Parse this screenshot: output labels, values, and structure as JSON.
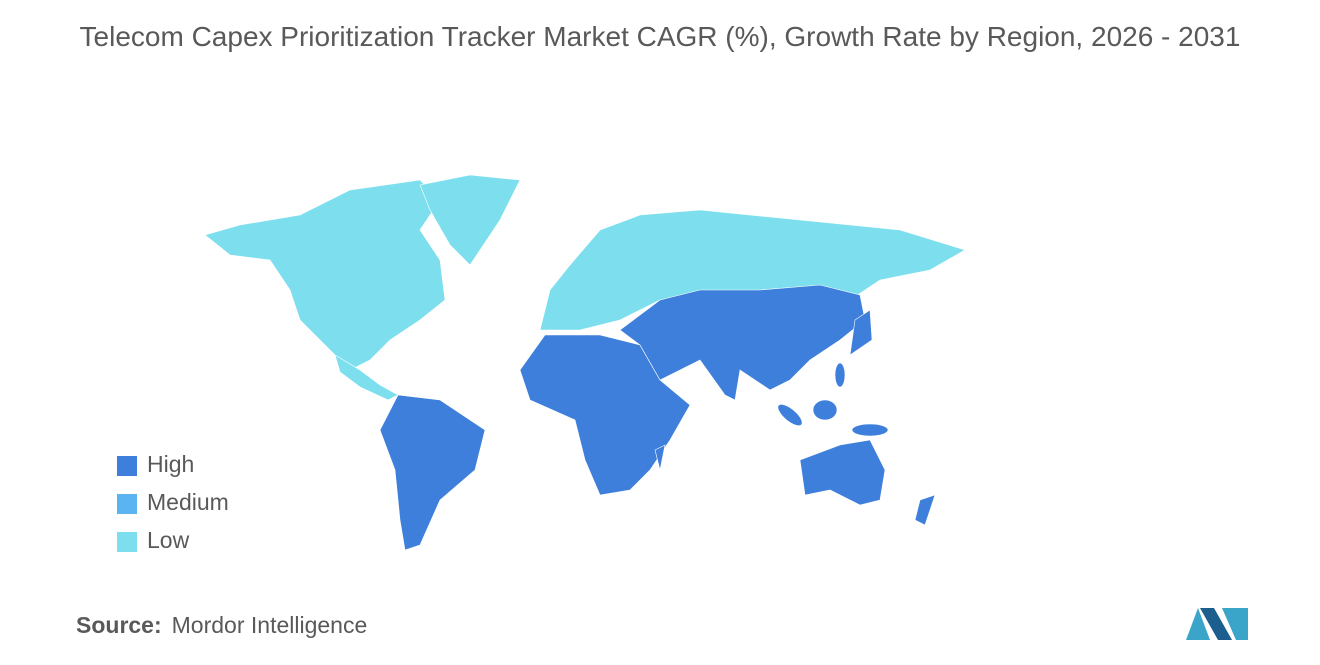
{
  "title": "Telecom Capex Prioritization Tracker Market CAGR (%), Growth Rate by Region, 2026 - 2031",
  "legend": [
    {
      "label": "High",
      "color": "#3d7fdb"
    },
    {
      "label": "Medium",
      "color": "#5cb3f2"
    },
    {
      "label": "Low",
      "color": "#7ddfee"
    }
  ],
  "source": {
    "label": "Source:",
    "text": "Mordor Intelligence"
  }
}
